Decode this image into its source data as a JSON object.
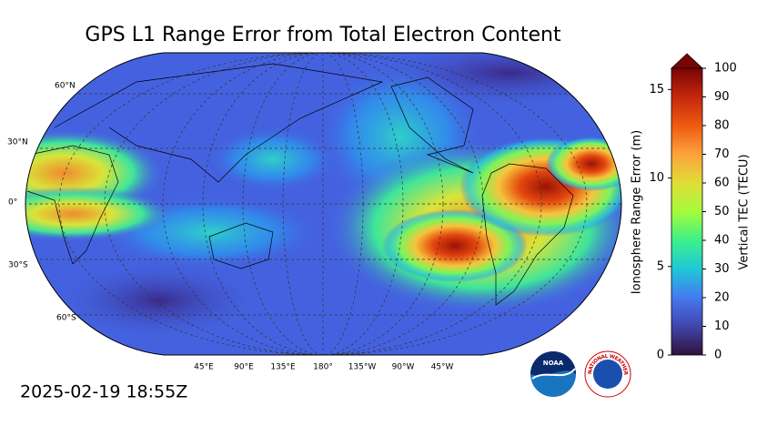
{
  "title": "GPS L1 Range Error from Total Electron Content",
  "timestamp": "2025-02-19 18:55Z",
  "map": {
    "lat_labels": [
      "60°N",
      "30°N",
      "0°",
      "30°S",
      "60°S"
    ],
    "lon_labels": [
      "45°E",
      "90°E",
      "135°E",
      "180°",
      "135°W",
      "90°W",
      "45°W"
    ]
  },
  "colorbar": {
    "left_label": "Ionosphere Range Error (m)",
    "right_label": "Vertical TEC (TECU)",
    "left_lim": [
      0,
      16.2
    ],
    "left_ticks": [
      0,
      5,
      10,
      15
    ],
    "right_lim": [
      0,
      100
    ],
    "right_ticks": [
      0,
      10,
      20,
      30,
      40,
      50,
      60,
      70,
      80,
      90,
      100
    ]
  },
  "logos": {
    "noaa": "NOAA",
    "nws": "NATIONAL WEATHER SERVICE"
  }
}
